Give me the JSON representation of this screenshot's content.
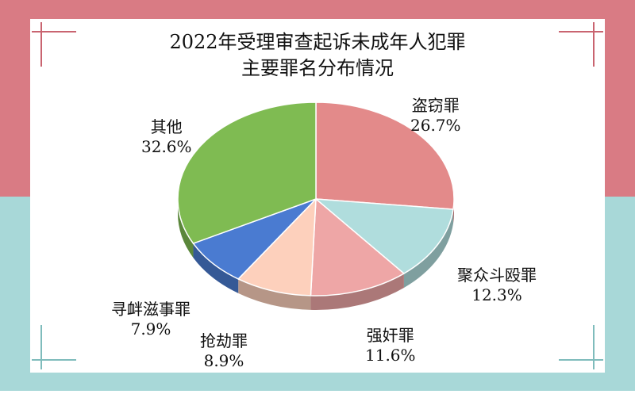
{
  "colors": {
    "background_top": "#d97b84",
    "background_bottom": "#a8d8d8",
    "panel": "#ffffff",
    "corner_top": "#c96470",
    "corner_bottom": "#7fbcbc"
  },
  "chart_data": {
    "type": "pie",
    "title_lines": [
      "2022年受理审查起诉未成年人犯罪",
      "主要罪名分布情况"
    ],
    "slices": [
      {
        "name": "盗窃罪",
        "value": 26.7,
        "label": "26.7%",
        "color": "#e38a8a"
      },
      {
        "name": "聚众斗殴罪",
        "value": 12.3,
        "label": "12.3%",
        "color": "#b0dddd"
      },
      {
        "name": "强奸罪",
        "value": 11.6,
        "label": "11.6%",
        "color": "#eea6a6"
      },
      {
        "name": "抢劫罪",
        "value": 8.9,
        "label": "8.9%",
        "color": "#fdd0bc"
      },
      {
        "name": "寻衅滋事罪",
        "value": 7.9,
        "label": "7.9%",
        "color": "#4a7bd1"
      },
      {
        "name": "其他",
        "value": 32.6,
        "label": "32.6%",
        "color": "#7fbb52"
      }
    ]
  }
}
